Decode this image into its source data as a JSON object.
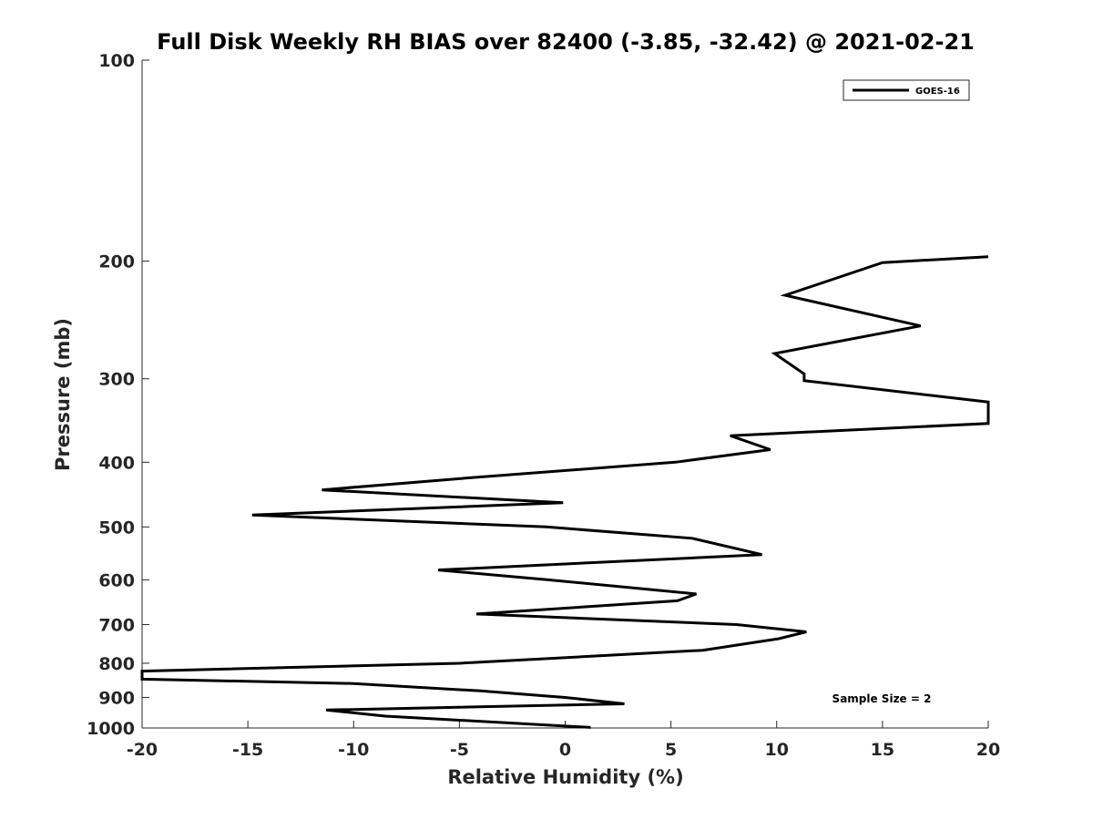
{
  "chart_data": {
    "type": "line",
    "title": "Full Disk Weekly RH BIAS over 82400 (-3.85, -32.42) @ 2021-02-21",
    "xlabel": "Relative Humidity (%)",
    "ylabel": "Pressure (mb)",
    "xlim": [
      -20,
      20
    ],
    "ylim": [
      1000,
      100
    ],
    "yscale": "log",
    "y_reversed": true,
    "grid": false,
    "legend_placement": "top-right",
    "x_ticks": [
      "-20",
      "-15",
      "-10",
      "-5",
      "0",
      "5",
      "10",
      "15",
      "20"
    ],
    "y_ticks": [
      "100",
      "200",
      "300",
      "400",
      "500",
      "600",
      "700",
      "800",
      "900",
      "1000"
    ],
    "annotation": "Sample Size = 2",
    "series": [
      {
        "name": "GOES-16",
        "color": "#000000",
        "points": [
          {
            "x": 20,
            "y": 197
          },
          {
            "x": 15,
            "y": 201
          },
          {
            "x": 10.4,
            "y": 225
          },
          {
            "x": 16.8,
            "y": 250
          },
          {
            "x": 9.9,
            "y": 275
          },
          {
            "x": 11.3,
            "y": 295
          },
          {
            "x": 11.3,
            "y": 302
          },
          {
            "x": 20,
            "y": 325
          },
          {
            "x": 20,
            "y": 350
          },
          {
            "x": 7.8,
            "y": 365
          },
          {
            "x": 9.7,
            "y": 383
          },
          {
            "x": 5.2,
            "y": 400
          },
          {
            "x": -4.5,
            "y": 422
          },
          {
            "x": -11.5,
            "y": 440
          },
          {
            "x": -0.1,
            "y": 460
          },
          {
            "x": -14.8,
            "y": 480
          },
          {
            "x": -0.9,
            "y": 500
          },
          {
            "x": 6,
            "y": 520
          },
          {
            "x": 9.3,
            "y": 550
          },
          {
            "x": -6,
            "y": 580
          },
          {
            "x": -0.8,
            "y": 600
          },
          {
            "x": 6.2,
            "y": 630
          },
          {
            "x": 5.3,
            "y": 645
          },
          {
            "x": -4.2,
            "y": 675
          },
          {
            "x": 8.1,
            "y": 700
          },
          {
            "x": 11.4,
            "y": 718
          },
          {
            "x": 10.1,
            "y": 735
          },
          {
            "x": 6.5,
            "y": 765
          },
          {
            "x": -5,
            "y": 800
          },
          {
            "x": -20,
            "y": 822
          },
          {
            "x": -20,
            "y": 845
          },
          {
            "x": -10,
            "y": 858
          },
          {
            "x": -4,
            "y": 880
          },
          {
            "x": 0,
            "y": 900
          },
          {
            "x": 2.8,
            "y": 920
          },
          {
            "x": -11.3,
            "y": 940
          },
          {
            "x": -8.5,
            "y": 960
          },
          {
            "x": 1.2,
            "y": 998
          }
        ]
      }
    ]
  }
}
